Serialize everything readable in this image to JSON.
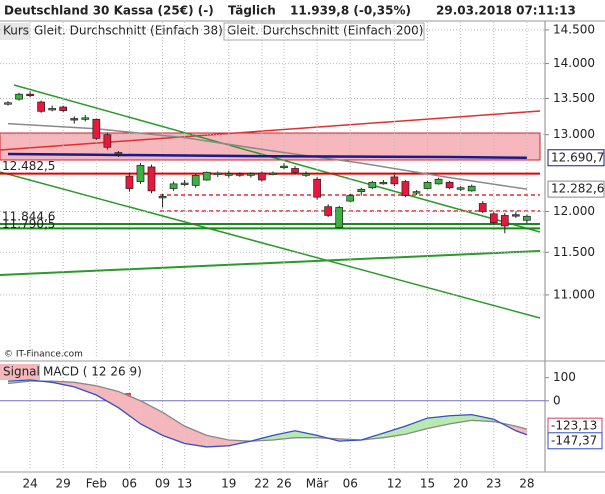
{
  "header": {
    "title": "Deutschland 30 Kassa (25€) (-)",
    "interval": "Täglich",
    "last_price": "11.939,8 (-0,35%)",
    "timestamp": "29.03.2018 07:11:13"
  },
  "source": "© IT-Finance.com",
  "chart_data": [
    {
      "type": "candlestick",
      "price_name": "Kurs",
      "categories": [
        null,
        null,
        "24",
        null,
        null,
        "29",
        null,
        null,
        "Feb",
        null,
        null,
        "06",
        null,
        null,
        "09",
        null,
        "13",
        null,
        null,
        null,
        "19",
        null,
        null,
        "22",
        null,
        "26",
        null,
        null,
        "Mär",
        null,
        null,
        "06",
        null,
        null,
        null,
        "12",
        null,
        null,
        "15",
        null,
        null,
        "20",
        null,
        null,
        "23",
        null,
        null,
        "28"
      ],
      "open": [
        13430,
        13490,
        13560,
        13450,
        13340,
        13380,
        13220,
        13220,
        13210,
        13000,
        12760,
        12450,
        12380,
        12570,
        12180,
        12290,
        12350,
        12330,
        12400,
        12470,
        12460,
        12480,
        12460,
        12490,
        12470,
        12560,
        12550,
        12470,
        12410,
        12060,
        11800,
        12130,
        12250,
        12300,
        12360,
        12440,
        12380,
        12240,
        12290,
        12350,
        12370,
        12290,
        12260,
        12100,
        11970,
        11950,
        11960,
        11890
      ],
      "high": [
        13460,
        13580,
        13600,
        13470,
        13400,
        13400,
        13250,
        13270,
        13220,
        13030,
        12780,
        12490,
        12620,
        12600,
        12220,
        12380,
        12400,
        12480,
        12510,
        12510,
        12520,
        12500,
        12500,
        12510,
        12510,
        12620,
        12580,
        12510,
        12440,
        12090,
        12070,
        12220,
        12300,
        12390,
        12400,
        12470,
        12400,
        12270,
        12390,
        12430,
        12390,
        12320,
        12340,
        12130,
        12000,
        11980,
        12000,
        11960
      ],
      "low": [
        13400,
        13470,
        13520,
        13300,
        13320,
        13310,
        13150,
        13180,
        12930,
        12800,
        12700,
        12250,
        12350,
        12230,
        12050,
        12260,
        12320,
        12300,
        12390,
        12440,
        12430,
        12440,
        12430,
        12380,
        12460,
        12540,
        12470,
        12440,
        12150,
        11930,
        11790,
        12120,
        12200,
        12280,
        12340,
        12320,
        12180,
        12210,
        12280,
        12340,
        12280,
        12260,
        12250,
        11980,
        11840,
        11730,
        11920,
        11850
      ],
      "close": [
        13440,
        13560,
        13540,
        13320,
        13360,
        13330,
        13200,
        13230,
        12950,
        12830,
        12740,
        12290,
        12590,
        12260,
        12190,
        12350,
        12360,
        12460,
        12500,
        12490,
        12480,
        12470,
        12480,
        12400,
        12490,
        12580,
        12500,
        12480,
        12180,
        11950,
        12050,
        12200,
        12280,
        12370,
        12370,
        12350,
        12200,
        12250,
        12370,
        12410,
        12300,
        12300,
        12320,
        12000,
        11860,
        11820,
        11950,
        11939.8
      ],
      "up_color": "#3cb043",
      "down_color": "#e8183c",
      "log_scale": true,
      "grid": true,
      "ylim": [
        10300,
        14620
      ],
      "yticks": [
        {
          "value": 11000,
          "label": "11.000"
        },
        {
          "value": 11500,
          "label": "11.500"
        },
        {
          "value": 12000,
          "label": "12.000"
        },
        {
          "value": 13000,
          "label": "13.000"
        },
        {
          "value": 13500,
          "label": "13.500"
        },
        {
          "value": 14000,
          "label": "14.000"
        },
        {
          "value": 14500,
          "label": "14.500"
        }
      ],
      "series": [
        {
          "name": "Gleit. Durchschnitt (Einfach 38)",
          "color": "#8a8a8a",
          "x": [
            0,
            8,
            16,
            24,
            32,
            40,
            47
          ],
          "values": [
            13150,
            13080,
            12960,
            12780,
            12620,
            12430,
            12282.6
          ],
          "last_label": "12.282,6"
        },
        {
          "name": "Gleit. Durchschnitt (Einfach 200)",
          "color": "#1a1a8c",
          "x": [
            0,
            8,
            16,
            24,
            32,
            40,
            47
          ],
          "values": [
            12740,
            12730,
            12720,
            12710,
            12705,
            12700,
            12690.7
          ],
          "last_label": "12.690,7"
        }
      ],
      "hlines": [
        {
          "value": 12482.5,
          "label": "12.482,5",
          "color": "#e00000"
        },
        {
          "value": 11844.6,
          "label": "11.844,6",
          "color": "#1a8a1a"
        },
        {
          "value": 11790.5,
          "label": "11.790,5",
          "color": "#1a8a1a"
        }
      ]
    },
    {
      "type": "macd",
      "ylim": [
        -300,
        155
      ],
      "yticks": [
        0,
        100
      ],
      "x": [
        0,
        2,
        4,
        6,
        8,
        10,
        12,
        14,
        16,
        18,
        20,
        22,
        24,
        26,
        28,
        30,
        32,
        34,
        36,
        38,
        40,
        42,
        44,
        46,
        47
      ],
      "series": [
        {
          "name": "Signal",
          "color": "#d04060",
          "values": [
            75,
            85,
            85,
            80,
            65,
            40,
            0,
            -50,
            -110,
            -150,
            -170,
            -175,
            -170,
            -160,
            -160,
            -165,
            -170,
            -160,
            -145,
            -120,
            -100,
            -85,
            -90,
            -110,
            -123.13
          ],
          "last_label": "-123,13"
        },
        {
          "name": "MACD ( 12 26 9)",
          "color": "#3050c8",
          "values": [
            85,
            90,
            80,
            60,
            25,
            -30,
            -100,
            -150,
            -185,
            -200,
            -195,
            -175,
            -150,
            -130,
            -150,
            -175,
            -170,
            -140,
            -110,
            -75,
            -65,
            -60,
            -80,
            -130,
            -147.37
          ],
          "last_label": "-147,37"
        }
      ],
      "pos_fill": "#b8eab0",
      "neg_fill": "#f4b8bc"
    }
  ]
}
